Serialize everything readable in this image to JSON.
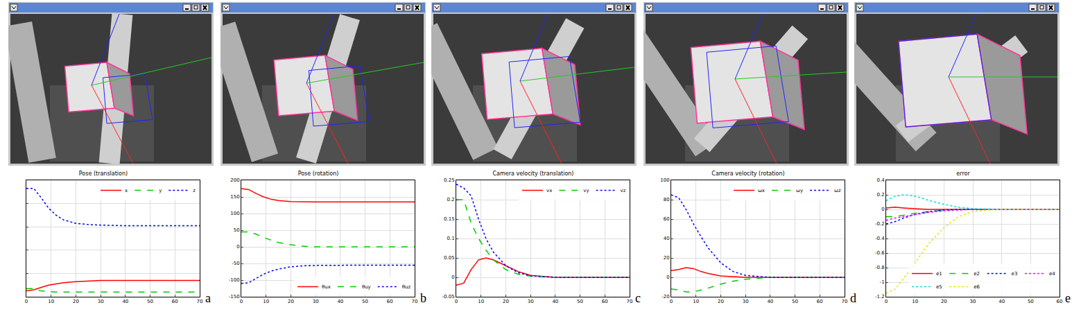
{
  "chart_data": [
    {
      "type": "line",
      "title": "Pose (translation)",
      "panel": "a",
      "x": [
        0,
        3,
        6,
        9,
        12,
        15,
        20,
        25,
        30,
        40,
        50,
        60,
        70
      ],
      "xlim": [
        0,
        70
      ],
      "xticks": [
        0,
        10,
        20,
        30,
        40,
        50,
        60,
        70
      ],
      "ylim": [
        0,
        1
      ],
      "yticks": [
        0,
        0.2,
        0.4,
        0.6,
        0.8,
        1
      ],
      "tick_labels": "x",
      "grid": true,
      "legend": "top right",
      "series": [
        {
          "name": "x",
          "color": "#ff0000",
          "line_style": "solid",
          "values": [
            0.05,
            0.06,
            0.08,
            0.1,
            0.11,
            0.12,
            0.13,
            0.135,
            0.14,
            0.14,
            0.14,
            0.14,
            0.14
          ]
        },
        {
          "name": "y",
          "color": "#00cc00",
          "line_style": "dashed",
          "values": [
            0.07,
            0.07,
            0.05,
            0.045,
            0.04,
            0.04,
            0.04,
            0.04,
            0.04,
            0.04,
            0.04,
            0.04,
            0.04
          ]
        },
        {
          "name": "z",
          "color": "#0000ff",
          "line_style": "dotted",
          "values": [
            0.93,
            0.93,
            0.85,
            0.76,
            0.7,
            0.66,
            0.63,
            0.62,
            0.615,
            0.61,
            0.61,
            0.61,
            0.61
          ]
        }
      ]
    },
    {
      "type": "line",
      "title": "Pose (rotation)",
      "panel": "b",
      "x": [
        0,
        3,
        6,
        9,
        12,
        15,
        20,
        25,
        30,
        40,
        50,
        60,
        70
      ],
      "xlim": [
        0,
        70
      ],
      "xticks": [
        0,
        10,
        20,
        30,
        40,
        50,
        60,
        70
      ],
      "ylim": [
        -150,
        200
      ],
      "yticks": [
        -150,
        -100,
        -50,
        0,
        50,
        100,
        150,
        200
      ],
      "grid": true,
      "legend": "bottom right",
      "series": [
        {
          "name": "θux",
          "color": "#ff0000",
          "line_style": "solid",
          "values": [
            175,
            172,
            160,
            150,
            143,
            139,
            136,
            135,
            135,
            135,
            135,
            135,
            135
          ]
        },
        {
          "name": "θuy",
          "color": "#00cc00",
          "line_style": "dashed",
          "values": [
            45,
            45,
            38,
            28,
            20,
            13,
            6,
            2,
            0,
            0,
            0,
            0,
            0
          ]
        },
        {
          "name": "θuz",
          "color": "#0000ff",
          "line_style": "dotted",
          "values": [
            -110,
            -108,
            -95,
            -82,
            -73,
            -67,
            -60,
            -57,
            -56,
            -55,
            -55,
            -55,
            -55
          ]
        }
      ]
    },
    {
      "type": "line",
      "title": "Camera velocity (translation)",
      "panel": "c",
      "x": [
        0,
        3,
        6,
        9,
        12,
        15,
        20,
        25,
        30,
        40,
        50,
        60,
        70
      ],
      "xlim": [
        0,
        70
      ],
      "xticks": [
        0,
        10,
        20,
        30,
        40,
        50,
        60,
        70
      ],
      "ylim": [
        -0.05,
        0.25
      ],
      "yticks": [
        -0.05,
        0,
        0.05,
        0.1,
        0.15,
        0.2,
        0.25
      ],
      "grid": true,
      "legend": "top right",
      "series": [
        {
          "name": "vx",
          "color": "#ff0000",
          "line_style": "solid",
          "values": [
            -0.02,
            -0.015,
            0.02,
            0.045,
            0.05,
            0.045,
            0.03,
            0.015,
            0.005,
            0,
            0,
            0,
            0
          ]
        },
        {
          "name": "vy",
          "color": "#00cc00",
          "line_style": "dashed",
          "values": [
            0.2,
            0.2,
            0.14,
            0.1,
            0.07,
            0.045,
            0.02,
            0.008,
            0.003,
            0,
            0,
            0,
            0
          ]
        },
        {
          "name": "vz",
          "color": "#0000ff",
          "line_style": "dotted",
          "values": [
            0.24,
            0.23,
            0.21,
            0.15,
            0.1,
            0.065,
            0.03,
            0.012,
            0.004,
            0,
            0,
            0,
            0
          ]
        }
      ]
    },
    {
      "type": "line",
      "title": "Camera velocity (rotation)",
      "panel": "d",
      "x": [
        0,
        3,
        6,
        9,
        12,
        15,
        20,
        25,
        30,
        40,
        50,
        60,
        70
      ],
      "xlim": [
        0,
        70
      ],
      "xticks": [
        0,
        10,
        20,
        30,
        40,
        50,
        60,
        70
      ],
      "ylim": [
        -20,
        100
      ],
      "yticks": [
        -20,
        0,
        20,
        40,
        60,
        80,
        100
      ],
      "grid": true,
      "legend": "top right",
      "series": [
        {
          "name": "ωx",
          "color": "#ff0000",
          "line_style": "solid",
          "values": [
            7,
            8,
            10,
            9,
            6,
            4,
            1.5,
            0.5,
            0,
            0,
            0,
            0,
            0
          ]
        },
        {
          "name": "ωy",
          "color": "#00cc00",
          "line_style": "dashed",
          "values": [
            -12,
            -13,
            -15,
            -15,
            -13,
            -11,
            -7,
            -4,
            -2,
            0,
            0,
            0,
            0
          ]
        },
        {
          "name": "ωz",
          "color": "#0000ff",
          "line_style": "dotted",
          "values": [
            85,
            82,
            70,
            55,
            42,
            30,
            15,
            6,
            2,
            0,
            0,
            0,
            0
          ]
        }
      ]
    },
    {
      "type": "line",
      "title": "error",
      "panel": "e",
      "x": [
        0,
        3,
        6,
        9,
        12,
        15,
        20,
        25,
        30,
        35,
        40,
        50,
        60
      ],
      "xlim": [
        0,
        60
      ],
      "xticks": [
        0,
        10,
        20,
        30,
        40,
        50,
        60
      ],
      "ylim": [
        -1.2,
        0.4
      ],
      "yticks": [
        -1.2,
        -1,
        -0.8,
        -0.6,
        -0.4,
        -0.2,
        0,
        0.2,
        0.4
      ],
      "grid": true,
      "legend": "bottom right",
      "series": [
        {
          "name": "e1",
          "color": "#ff0000",
          "line_style": "solid",
          "values": [
            0.02,
            0.03,
            0.02,
            0.01,
            0.005,
            0,
            0,
            0,
            0,
            0,
            0,
            0,
            0
          ]
        },
        {
          "name": "e2",
          "color": "#00cc00",
          "line_style": "dashed",
          "values": [
            -0.1,
            -0.1,
            -0.08,
            -0.06,
            -0.04,
            -0.03,
            -0.01,
            0,
            0,
            0,
            0,
            0,
            0
          ]
        },
        {
          "name": "e3",
          "color": "#0000ff",
          "line_style": "dotted",
          "values": [
            -0.2,
            -0.17,
            -0.12,
            -0.08,
            -0.05,
            -0.03,
            -0.01,
            0,
            0,
            0,
            0,
            0,
            0
          ]
        },
        {
          "name": "e4",
          "color": "#ff00ff",
          "line_style": "dotted",
          "values": [
            -0.15,
            -0.12,
            -0.1,
            -0.08,
            -0.06,
            -0.04,
            -0.02,
            -0.01,
            0,
            0,
            0,
            0,
            0
          ]
        },
        {
          "name": "e5",
          "color": "#00dddd",
          "line_style": "dotted",
          "values": [
            0.12,
            0.18,
            0.2,
            0.19,
            0.16,
            0.12,
            0.07,
            0.03,
            0.01,
            0.005,
            0,
            0,
            0
          ]
        },
        {
          "name": "e6",
          "color": "#e6e600",
          "line_style": "dotted",
          "values": [
            -1.15,
            -1.1,
            -0.95,
            -0.8,
            -0.62,
            -0.46,
            -0.25,
            -0.1,
            -0.03,
            -0.01,
            0,
            0,
            0
          ]
        }
      ]
    }
  ]
}
